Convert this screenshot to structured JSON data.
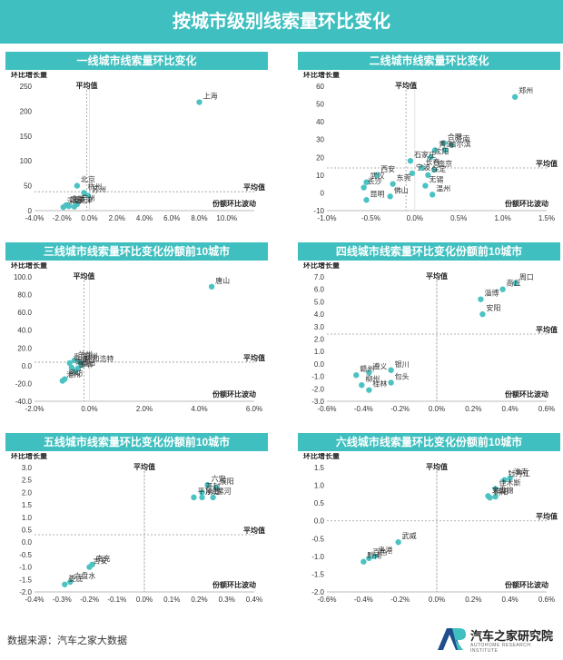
{
  "title": "按城市级别线索量环比变化",
  "source": "数据来源：汽车之家大数据",
  "logo": {
    "name": "汽车之家研究院",
    "sub": "AUTOHOME RESEARCH INSTITUTE"
  },
  "colors": {
    "accent": "#3fbfbf",
    "point": "#4cc2c2"
  },
  "chart_data": [
    {
      "type": "scatter",
      "title": "一线城市线索量环比变化",
      "ylabel": "环比增长量",
      "xlabel": "份额环比波动",
      "avg_x_label": "平均值",
      "avg_y_label": "平均值",
      "xlim": [
        -0.04,
        0.12
      ],
      "ylim": [
        0,
        250
      ],
      "xticks": [
        -0.04,
        -0.02,
        0,
        0.02,
        0.04,
        0.06,
        0.08,
        0.1
      ],
      "xtick_labels": [
        "-4.0%",
        "-2.0%",
        "0.0%",
        "2.0%",
        "4.0%",
        "6.0%",
        "8.0%",
        "10.0%"
      ],
      "yticks": [
        0,
        50,
        100,
        150,
        200,
        250
      ],
      "ytick_labels": [
        "0",
        "50",
        "100",
        "150",
        "200",
        "250"
      ],
      "avg_x": -0.002,
      "avg_y": 38,
      "points": [
        {
          "name": "上海",
          "x": 0.08,
          "y": 218
        },
        {
          "name": "北京",
          "x": -0.009,
          "y": 50
        },
        {
          "name": "杭州",
          "x": -0.004,
          "y": 36
        },
        {
          "name": "苏州",
          "x": -0.001,
          "y": 30
        },
        {
          "name": "广州",
          "x": -0.009,
          "y": 13
        },
        {
          "name": "天津",
          "x": -0.011,
          "y": 8
        },
        {
          "name": "重庆",
          "x": -0.015,
          "y": 9
        },
        {
          "name": "成都",
          "x": -0.017,
          "y": 11
        },
        {
          "name": "深圳",
          "x": -0.019,
          "y": 7
        }
      ]
    },
    {
      "type": "scatter",
      "title": "二线城市线索量环比变化",
      "ylabel": "环比增长量",
      "xlabel": "份额环比波动",
      "avg_x_label": "平均值",
      "avg_y_label": "平均值",
      "xlim": [
        -0.01,
        0.015
      ],
      "ylim": [
        -10,
        60
      ],
      "xticks": [
        -0.01,
        -0.005,
        0,
        0.005,
        0.01,
        0.015
      ],
      "xtick_labels": [
        "-1.0%",
        "-0.5%",
        "0.0%",
        "0.5%",
        "1.0%",
        "1.5%"
      ],
      "yticks": [
        -10,
        0,
        10,
        20,
        30,
        40,
        50,
        60
      ],
      "ytick_labels": [
        "-10",
        "0",
        "10",
        "20",
        "30",
        "40",
        "50",
        "60"
      ],
      "avg_x": -0.001,
      "avg_y": 14,
      "points": [
        {
          "name": "郑州",
          "x": 0.0114,
          "y": 54
        },
        {
          "name": "合肥",
          "x": 0.0033,
          "y": 28
        },
        {
          "name": "济南",
          "x": 0.0042,
          "y": 27
        },
        {
          "name": "青岛",
          "x": 0.0023,
          "y": 24
        },
        {
          "name": "哈尔滨",
          "x": 0.0035,
          "y": 24
        },
        {
          "name": "沈阳",
          "x": 0.0018,
          "y": 20
        },
        {
          "name": "石家庄",
          "x": -0.0005,
          "y": 18
        },
        {
          "name": "长春",
          "x": 0.0008,
          "y": 14
        },
        {
          "name": "南京",
          "x": 0.0022,
          "y": 13
        },
        {
          "name": "宁波",
          "x": -0.0003,
          "y": 11
        },
        {
          "name": "保定",
          "x": 0.0015,
          "y": 10
        },
        {
          "name": "西安",
          "x": -0.0043,
          "y": 10
        },
        {
          "name": "武汉",
          "x": -0.0055,
          "y": 6
        },
        {
          "name": "东莞",
          "x": -0.0025,
          "y": 5
        },
        {
          "name": "长沙",
          "x": -0.0058,
          "y": 3
        },
        {
          "name": "无锡",
          "x": 0.0012,
          "y": 4
        },
        {
          "name": "温州",
          "x": 0.002,
          "y": -1
        },
        {
          "name": "佛山",
          "x": -0.0028,
          "y": -2
        },
        {
          "name": "昆明",
          "x": -0.0055,
          "y": -4
        }
      ]
    },
    {
      "type": "scatter",
      "title": "三线城市线索量环比变化份额前10城市",
      "ylabel": "环比增长量",
      "xlabel": "份额环比波动",
      "avg_x_label": "平均值",
      "avg_y_label": "平均值",
      "xlim": [
        -0.02,
        0.06
      ],
      "ylim": [
        -40,
        100
      ],
      "xticks": [
        -0.02,
        0,
        0.02,
        0.04,
        0.06
      ],
      "xtick_labels": [
        "-2.0%",
        "0.0%",
        "2.0%",
        "4.0%",
        "6.0%"
      ],
      "yticks": [
        -40,
        -20,
        0,
        20,
        40,
        60,
        80,
        100
      ],
      "ytick_labels": [
        "-40.0",
        "-20.0",
        "0.0",
        "20.0",
        "40.0",
        "60.0",
        "80.0",
        "100.0"
      ],
      "avg_x": -0.002,
      "avg_y": 4,
      "points": [
        {
          "name": "唐山",
          "x": 0.0445,
          "y": 89
        },
        {
          "name": "兰州",
          "x": -0.0055,
          "y": 6
        },
        {
          "name": "福州",
          "x": -0.0035,
          "y": 4
        },
        {
          "name": "贵阳",
          "x": -0.0072,
          "y": 3
        },
        {
          "name": "呼和浩特",
          "x": -0.003,
          "y": 1
        },
        {
          "name": "南宁",
          "x": -0.0065,
          "y": -2
        },
        {
          "name": "邢台",
          "x": -0.0042,
          "y": -3
        },
        {
          "name": "邯郸",
          "x": -0.0052,
          "y": -6
        },
        {
          "name": "沧州",
          "x": -0.0098,
          "y": -17
        },
        {
          "name": "廊坊",
          "x": -0.009,
          "y": -15
        }
      ]
    },
    {
      "type": "scatter",
      "title": "四线城市线索量环比变化份额前10城市",
      "ylabel": "环比增长量",
      "xlabel": "份额环比波动",
      "avg_x_label": "平均值",
      "avg_y_label": "平均值",
      "xlim": [
        -0.006,
        0.006
      ],
      "ylim": [
        -3,
        7
      ],
      "xticks": [
        -0.006,
        -0.004,
        -0.002,
        0,
        0.002,
        0.004,
        0.006
      ],
      "xtick_labels": [
        "-0.6%",
        "-0.4%",
        "-0.2%",
        "0.0%",
        "0.2%",
        "0.4%",
        "0.6%"
      ],
      "yticks": [
        -3,
        -2,
        -1,
        0,
        1,
        2,
        3,
        4,
        5,
        6,
        7
      ],
      "ytick_labels": [
        "-3.0",
        "-2.0",
        "-1.0",
        "0.0",
        "1.0",
        "2.0",
        "3.0",
        "4.0",
        "5.0",
        "6.0",
        "7.0"
      ],
      "avg_x": 0,
      "avg_y": 2.4,
      "points": [
        {
          "name": "周口",
          "x": 0.0043,
          "y": 6.5
        },
        {
          "name": "商丘",
          "x": 0.0036,
          "y": 6.0
        },
        {
          "name": "淄博",
          "x": 0.0024,
          "y": 5.2
        },
        {
          "name": "安阳",
          "x": 0.0025,
          "y": 4.0
        },
        {
          "name": "银川",
          "x": -0.0025,
          "y": -0.5
        },
        {
          "name": "遵义",
          "x": -0.0037,
          "y": -0.7
        },
        {
          "name": "赣州",
          "x": -0.0044,
          "y": -0.9
        },
        {
          "name": "包头",
          "x": -0.0025,
          "y": -1.5
        },
        {
          "name": "柳州",
          "x": -0.0041,
          "y": -1.7
        },
        {
          "name": "桂林",
          "x": -0.0037,
          "y": -2.1
        }
      ]
    },
    {
      "type": "scatter",
      "title": "五线城市线索量环比变化份额前10城市",
      "ylabel": "环比增长量",
      "xlabel": "份额环比波动",
      "avg_x_label": "平均值",
      "avg_y_label": "平均值",
      "xlim": [
        -0.004,
        0.004
      ],
      "ylim": [
        -2,
        3
      ],
      "xticks": [
        -0.004,
        -0.003,
        -0.002,
        -0.001,
        0,
        0.001,
        0.002,
        0.003,
        0.004
      ],
      "xtick_labels": [
        "-0.4%",
        "-0.3%",
        "-0.2%",
        "-0.1%",
        "0.0%",
        "0.1%",
        "0.2%",
        "0.3%",
        "0.4%"
      ],
      "yticks": [
        -2,
        -1.5,
        -1,
        -0.5,
        0,
        0.5,
        1,
        1.5,
        2,
        2.5,
        3
      ],
      "ytick_labels": [
        "-2.0",
        "-1.5",
        "-1.0",
        "-0.5",
        "0.0",
        "0.5",
        "1.0",
        "1.5",
        "2.0",
        "2.5",
        "3.0"
      ],
      "avg_x": 0,
      "avg_y": 0.3,
      "points": [
        {
          "name": "六安",
          "x": 0.0023,
          "y": 2.3
        },
        {
          "name": "濮阳",
          "x": 0.0026,
          "y": 2.2
        },
        {
          "name": "开封",
          "x": 0.0021,
          "y": 2.0
        },
        {
          "name": "平顶山",
          "x": 0.0018,
          "y": 1.8
        },
        {
          "name": "承德",
          "x": 0.0021,
          "y": 1.8
        },
        {
          "name": "漯河",
          "x": 0.0025,
          "y": 1.8
        },
        {
          "name": "南充",
          "x": -0.0019,
          "y": -0.9
        },
        {
          "name": "吉安",
          "x": -0.002,
          "y": -1.0
        },
        {
          "name": "六盘水",
          "x": -0.0027,
          "y": -1.6
        },
        {
          "name": "娄底",
          "x": -0.0029,
          "y": -1.7
        }
      ]
    },
    {
      "type": "scatter",
      "title": "六线城市线索量环比变化份额前10城市",
      "ylabel": "环比增长量",
      "xlabel": "份额环比波动",
      "avg_x_label": "平均值",
      "avg_y_label": "平均值",
      "xlim": [
        -0.006,
        0.006
      ],
      "ylim": [
        -2,
        1.5
      ],
      "xticks": [
        -0.006,
        -0.004,
        -0.002,
        0,
        0.002,
        0.004,
        0.006
      ],
      "xtick_labels": [
        "-0.6%",
        "-0.4%",
        "-0.2%",
        "0.0%",
        "0.2%",
        "0.4%",
        "0.6%"
      ],
      "yticks": [
        -2,
        -1.5,
        -1,
        -0.5,
        0,
        0.5,
        1,
        1.5
      ],
      "ytick_labels": [
        "-2.0",
        "-1.5",
        "-1.0",
        "-0.5",
        "0.0",
        "0.5",
        "1.0",
        "1.5"
      ],
      "avg_x": 0,
      "avg_y": 0,
      "points": [
        {
          "name": "淮南",
          "x": 0.004,
          "y": 1.2
        },
        {
          "name": "牡丹江",
          "x": 0.0037,
          "y": 1.15
        },
        {
          "name": "佳木斯",
          "x": 0.0032,
          "y": 0.9
        },
        {
          "name": "文山",
          "x": 0.0028,
          "y": 0.7
        },
        {
          "name": "盘锦",
          "x": 0.0032,
          "y": 0.68
        },
        {
          "name": "朝阳",
          "x": 0.0029,
          "y": 0.65
        },
        {
          "name": "武威",
          "x": -0.0021,
          "y": -0.6
        },
        {
          "name": "贵港",
          "x": -0.0034,
          "y": -1.0
        },
        {
          "name": "百色",
          "x": -0.0037,
          "y": -1.05
        },
        {
          "name": "黔南",
          "x": -0.004,
          "y": -1.15
        }
      ]
    }
  ]
}
